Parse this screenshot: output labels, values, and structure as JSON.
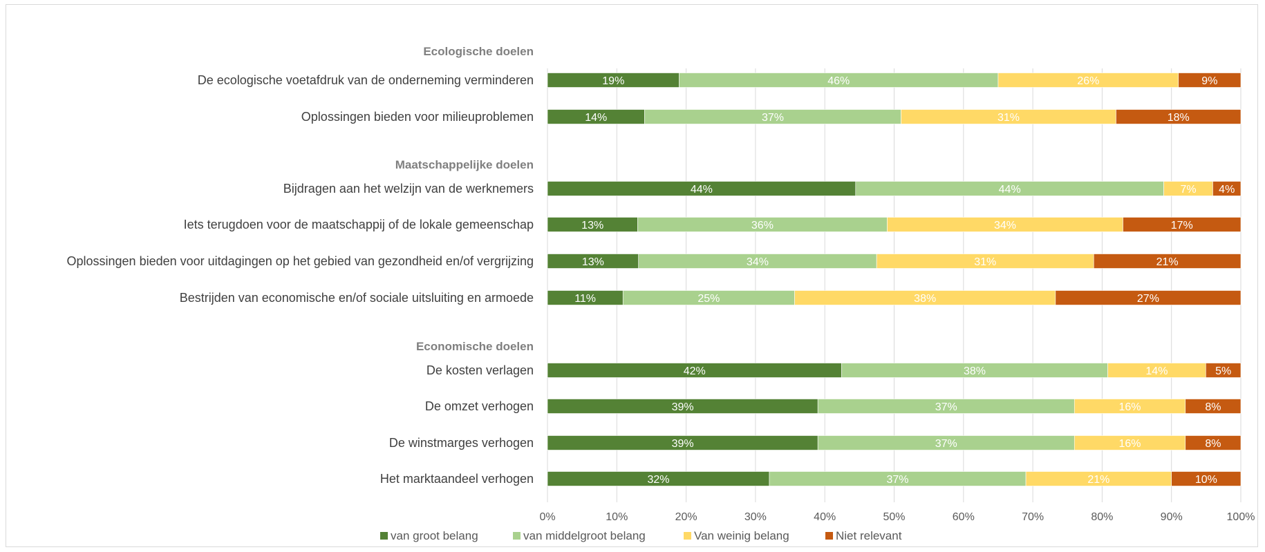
{
  "chart_data": {
    "type": "bar",
    "orientation": "horizontal",
    "stacked": "percent",
    "xlim": [
      0,
      100
    ],
    "x_tick_labels": [
      "0%",
      "10%",
      "20%",
      "30%",
      "40%",
      "50%",
      "60%",
      "70%",
      "80%",
      "90%",
      "100%"
    ],
    "grid": true,
    "legend_position": "bottom",
    "series": [
      {
        "name": "van groot belang",
        "color": "#548235"
      },
      {
        "name": "van middelgroot belang",
        "color": "#a9d18e"
      },
      {
        "name": "Van weinig belang",
        "color": "#ffd966"
      },
      {
        "name": "Niet relevant",
        "color": "#c55a11"
      }
    ],
    "groups": [
      {
        "title": "Ecologische doelen",
        "rows": [
          {
            "label": "De ecologische voetafdruk van de onderneming verminderen",
            "values": [
              19,
              46,
              26,
              9
            ]
          },
          {
            "label": "Oplossingen bieden voor milieuproblemen",
            "values": [
              14,
              37,
              31,
              18
            ]
          }
        ]
      },
      {
        "title": "Maatschappelijke doelen",
        "rows": [
          {
            "label": "Bijdragen aan het welzijn van de werknemers",
            "values": [
              44,
              44,
              7,
              4
            ]
          },
          {
            "label": "Iets terugdoen voor de maatschappij  of de lokale gemeenschap",
            "values": [
              13,
              36,
              34,
              17
            ]
          },
          {
            "label": "Oplossingen bieden voor uitdagingen op het gebied van gezondheid en/of vergrijzing",
            "values": [
              13,
              34,
              31,
              21
            ]
          },
          {
            "label": "Bestrijden van economische en/of sociale uitsluiting en armoede",
            "values": [
              11,
              25,
              38,
              27
            ]
          }
        ]
      },
      {
        "title": "Economische doelen",
        "rows": [
          {
            "label": "De kosten verlagen",
            "values": [
              42,
              38,
              14,
              5
            ]
          },
          {
            "label": "De omzet verhogen",
            "values": [
              39,
              37,
              16,
              8
            ]
          },
          {
            "label": "De winstmarges verhogen",
            "values": [
              39,
              37,
              16,
              8
            ]
          },
          {
            "label": "Het marktaandeel verhogen",
            "values": [
              32,
              37,
              21,
              10
            ]
          }
        ]
      }
    ]
  }
}
